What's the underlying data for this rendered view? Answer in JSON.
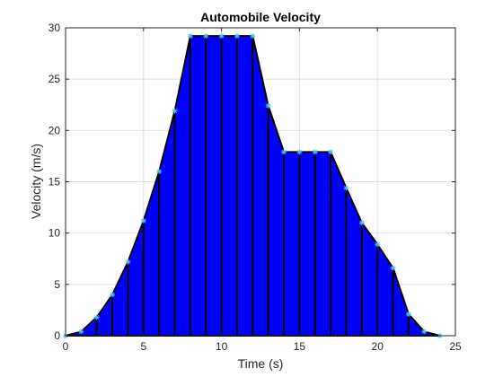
{
  "chart_data": {
    "type": "area",
    "title": "Automobile Velocity",
    "xlabel": "Time (s)",
    "ylabel": "Velocity (m/s)",
    "xlim": [
      0,
      25
    ],
    "ylim": [
      0,
      30
    ],
    "xticks": [
      0,
      5,
      10,
      15,
      20,
      25
    ],
    "yticks": [
      0,
      5,
      10,
      15,
      20,
      25,
      30
    ],
    "grid": true,
    "x": [
      0,
      1,
      2,
      3,
      4,
      5,
      6,
      7,
      8,
      9,
      10,
      11,
      12,
      13,
      14,
      15,
      16,
      17,
      18,
      19,
      20,
      21,
      22,
      23,
      24
    ],
    "values": [
      0,
      0.4,
      1.8,
      4,
      7.2,
      11.2,
      16,
      21.9,
      29.2,
      29.2,
      29.2,
      29.2,
      29.2,
      22.4,
      17.9,
      17.9,
      17.9,
      17.9,
      14.4,
      11,
      8.9,
      6.6,
      2.1,
      0.4,
      0
    ],
    "fill_color": "#0000ff",
    "edge_color": "#000000",
    "marker_color": "#4dbeee"
  }
}
